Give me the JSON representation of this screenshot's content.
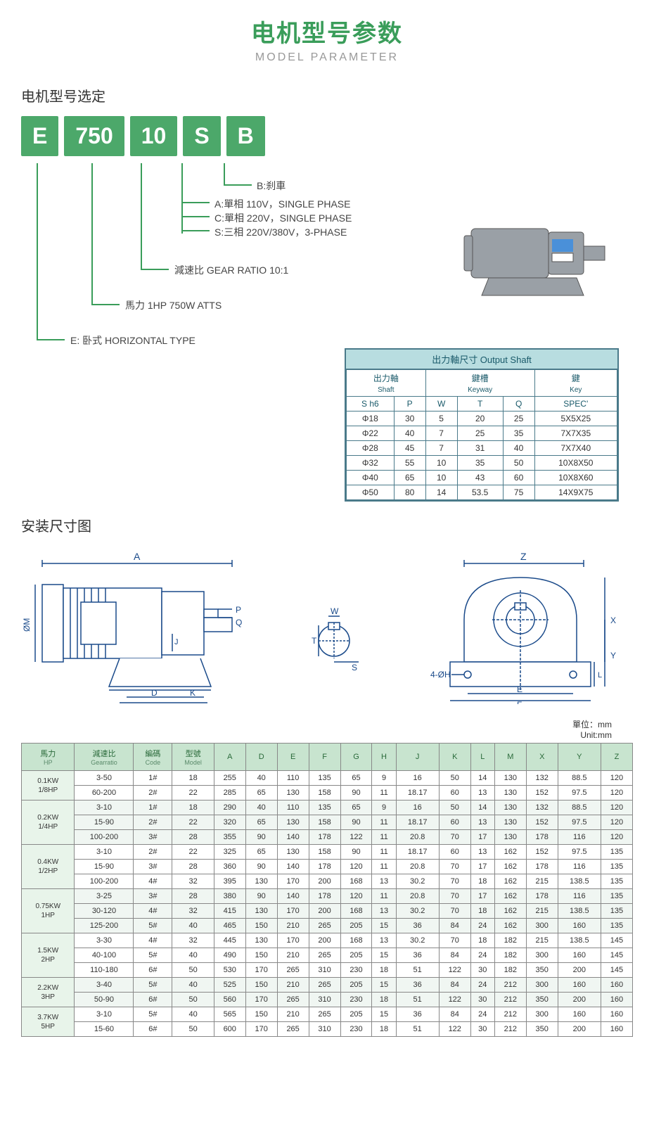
{
  "title": {
    "cn": "电机型号参数",
    "en": "MODEL PARAMETER"
  },
  "section_model": "电机型号选定",
  "model_codes": [
    "E",
    "750",
    "10",
    "S",
    "B"
  ],
  "model_descriptions": {
    "B": "B:刹車",
    "S_lines": [
      "A:單相 110V，SINGLE PHASE",
      "C:單相 220V，SINGLE PHASE",
      "S:三相 220V/380V，3-PHASE"
    ],
    "ratio": "減速比  GEAR RATIO 10:1",
    "hp": "馬力 1HP 750W ATTS",
    "E": "E: 卧式  HORIZONTAL TYPE"
  },
  "shaft_table": {
    "title": "出力軸尺寸 Output Shaft",
    "group_headers": [
      {
        "cn": "出力軸",
        "en": "Shaft",
        "span": 2
      },
      {
        "cn": "鍵槽",
        "en": "Keyway",
        "span": 3
      },
      {
        "cn": "鍵",
        "en": "Key",
        "span": 1
      }
    ],
    "cols": [
      "S h6",
      "P",
      "W",
      "T",
      "Q",
      "SPEC'"
    ],
    "rows": [
      [
        "Φ18",
        "30",
        "5",
        "20",
        "25",
        "5X5X25"
      ],
      [
        "Φ22",
        "40",
        "7",
        "25",
        "35",
        "7X7X35"
      ],
      [
        "Φ28",
        "45",
        "7",
        "31",
        "40",
        "7X7X40"
      ],
      [
        "Φ32",
        "55",
        "10",
        "35",
        "50",
        "10X8X50"
      ],
      [
        "Φ40",
        "65",
        "10",
        "43",
        "60",
        "10X8X60"
      ],
      [
        "Φ50",
        "80",
        "14",
        "53.5",
        "75",
        "14X9X75"
      ]
    ]
  },
  "section_install": "安装尺寸图",
  "unit_label_cn": "單位：mm",
  "unit_label_en": "Unit:mm",
  "dim_table": {
    "headers": [
      {
        "cn": "馬力",
        "en": "HP"
      },
      {
        "cn": "減速比",
        "en": "Gearratio"
      },
      {
        "cn": "編碼",
        "en": "Code"
      },
      {
        "cn": "型號",
        "en": "Model"
      },
      {
        "t": "A"
      },
      {
        "t": "D"
      },
      {
        "t": "E"
      },
      {
        "t": "F"
      },
      {
        "t": "G"
      },
      {
        "t": "H"
      },
      {
        "t": "J"
      },
      {
        "t": "K"
      },
      {
        "t": "L"
      },
      {
        "t": "M"
      },
      {
        "t": "X"
      },
      {
        "t": "Y"
      },
      {
        "t": "Z"
      }
    ],
    "groups": [
      {
        "hp": "0.1KW\n1/8HP",
        "rows": [
          [
            "3-50",
            "1#",
            "18",
            "255",
            "40",
            "110",
            "135",
            "65",
            "9",
            "16",
            "50",
            "14",
            "130",
            "132",
            "88.5",
            "120"
          ],
          [
            "60-200",
            "2#",
            "22",
            "285",
            "65",
            "130",
            "158",
            "90",
            "11",
            "18.17",
            "60",
            "13",
            "130",
            "152",
            "97.5",
            "120"
          ]
        ]
      },
      {
        "hp": "0.2KW\n1/4HP",
        "rows": [
          [
            "3-10",
            "1#",
            "18",
            "290",
            "40",
            "110",
            "135",
            "65",
            "9",
            "16",
            "50",
            "14",
            "130",
            "132",
            "88.5",
            "120"
          ],
          [
            "15-90",
            "2#",
            "22",
            "320",
            "65",
            "130",
            "158",
            "90",
            "11",
            "18.17",
            "60",
            "13",
            "130",
            "152",
            "97.5",
            "120"
          ],
          [
            "100-200",
            "3#",
            "28",
            "355",
            "90",
            "140",
            "178",
            "122",
            "11",
            "20.8",
            "70",
            "17",
            "130",
            "178",
            "116",
            "120"
          ]
        ]
      },
      {
        "hp": "0.4KW\n1/2HP",
        "rows": [
          [
            "3-10",
            "2#",
            "22",
            "325",
            "65",
            "130",
            "158",
            "90",
            "11",
            "18.17",
            "60",
            "13",
            "162",
            "152",
            "97.5",
            "135"
          ],
          [
            "15-90",
            "3#",
            "28",
            "360",
            "90",
            "140",
            "178",
            "120",
            "11",
            "20.8",
            "70",
            "17",
            "162",
            "178",
            "116",
            "135"
          ],
          [
            "100-200",
            "4#",
            "32",
            "395",
            "130",
            "170",
            "200",
            "168",
            "13",
            "30.2",
            "70",
            "18",
            "162",
            "215",
            "138.5",
            "135"
          ]
        ]
      },
      {
        "hp": "0.75KW\n1HP",
        "rows": [
          [
            "3-25",
            "3#",
            "28",
            "380",
            "90",
            "140",
            "178",
            "120",
            "11",
            "20.8",
            "70",
            "17",
            "162",
            "178",
            "116",
            "135"
          ],
          [
            "30-120",
            "4#",
            "32",
            "415",
            "130",
            "170",
            "200",
            "168",
            "13",
            "30.2",
            "70",
            "18",
            "162",
            "215",
            "138.5",
            "135"
          ],
          [
            "125-200",
            "5#",
            "40",
            "465",
            "150",
            "210",
            "265",
            "205",
            "15",
            "36",
            "84",
            "24",
            "162",
            "300",
            "160",
            "135"
          ]
        ]
      },
      {
        "hp": "1.5KW\n2HP",
        "rows": [
          [
            "3-30",
            "4#",
            "32",
            "445",
            "130",
            "170",
            "200",
            "168",
            "13",
            "30.2",
            "70",
            "18",
            "182",
            "215",
            "138.5",
            "145"
          ],
          [
            "40-100",
            "5#",
            "40",
            "490",
            "150",
            "210",
            "265",
            "205",
            "15",
            "36",
            "84",
            "24",
            "182",
            "300",
            "160",
            "145"
          ],
          [
            "110-180",
            "6#",
            "50",
            "530",
            "170",
            "265",
            "310",
            "230",
            "18",
            "51",
            "122",
            "30",
            "182",
            "350",
            "200",
            "145"
          ]
        ]
      },
      {
        "hp": "2.2KW\n3HP",
        "rows": [
          [
            "3-40",
            "5#",
            "40",
            "525",
            "150",
            "210",
            "265",
            "205",
            "15",
            "36",
            "84",
            "24",
            "212",
            "300",
            "160",
            "160"
          ],
          [
            "50-90",
            "6#",
            "50",
            "560",
            "170",
            "265",
            "310",
            "230",
            "18",
            "51",
            "122",
            "30",
            "212",
            "350",
            "200",
            "160"
          ]
        ]
      },
      {
        "hp": "3.7KW\n5HP",
        "rows": [
          [
            "3-10",
            "5#",
            "40",
            "565",
            "150",
            "210",
            "265",
            "205",
            "15",
            "36",
            "84",
            "24",
            "212",
            "300",
            "160",
            "160"
          ],
          [
            "15-60",
            "6#",
            "50",
            "600",
            "170",
            "265",
            "310",
            "230",
            "18",
            "51",
            "122",
            "30",
            "212",
            "350",
            "200",
            "160"
          ]
        ]
      }
    ]
  },
  "colors": {
    "green": "#3a9d5a",
    "box_green": "#4ca86a",
    "table_header_bg": "#c8e4cf",
    "shaft_border": "#4a7a8a",
    "shaft_title_bg": "#b8dde0"
  }
}
